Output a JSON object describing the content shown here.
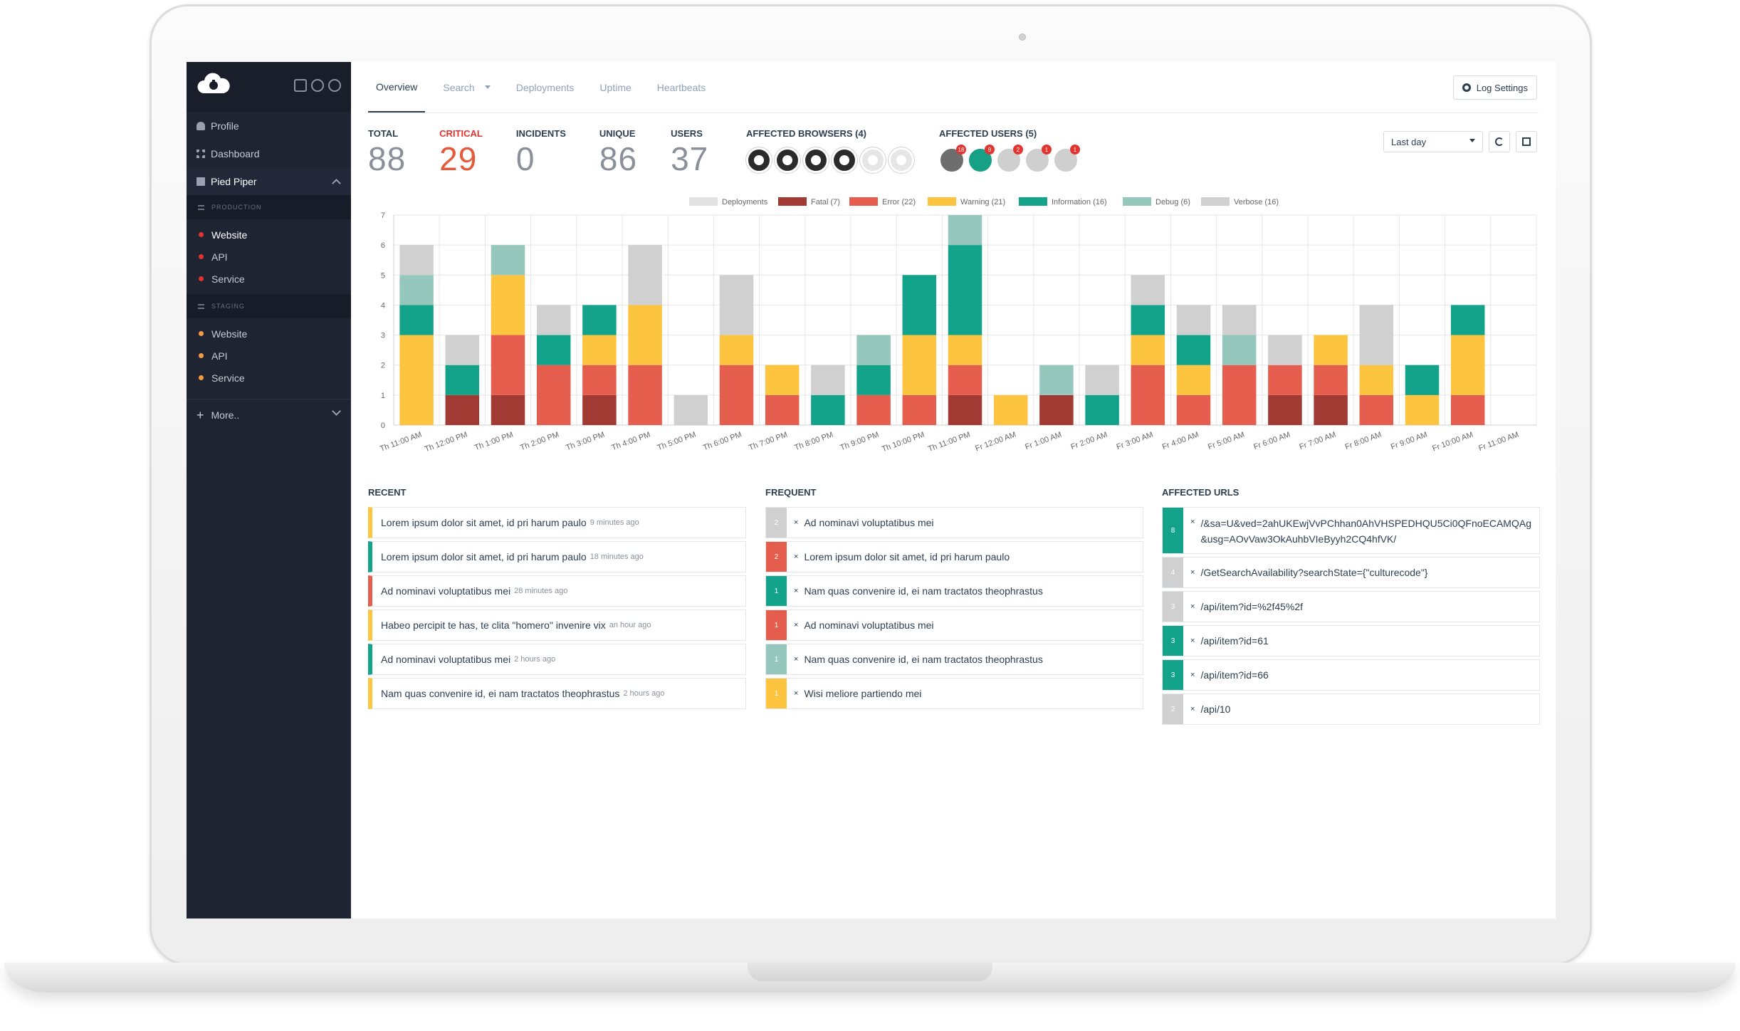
{
  "colors": {
    "fatal": "#a23a34",
    "error": "#e55d4c",
    "warning": "#fdc43f",
    "information": "#13a38b",
    "debug": "#95c7bd",
    "verbose": "#d0d0d0",
    "deployments": "#e2e2e2",
    "sidebar_bg": "#1f2433"
  },
  "sidebar": {
    "logo_icon": "cloud-bug-icon",
    "top_icons": [
      "gift-icon",
      "help-icon",
      "broadcast-icon"
    ],
    "profile": "Profile",
    "dashboard": "Dashboard",
    "project": "Pied Piper",
    "environments": [
      {
        "group": "PRODUCTION",
        "items": [
          {
            "label": "Website",
            "active": true
          },
          {
            "label": "API"
          },
          {
            "label": "Service"
          }
        ]
      },
      {
        "group": "STAGING",
        "items": [
          {
            "label": "Website"
          },
          {
            "label": "API"
          },
          {
            "label": "Service"
          }
        ]
      }
    ],
    "more": "More.."
  },
  "tabs": [
    "Overview",
    "Search",
    "Deployments",
    "Uptime",
    "Heartbeats"
  ],
  "log_settings": "Log Settings",
  "stats": [
    {
      "label": "TOTAL",
      "value": "88"
    },
    {
      "label": "CRITICAL",
      "value": "29"
    },
    {
      "label": "INCIDENTS",
      "value": "0"
    },
    {
      "label": "UNIQUE",
      "value": "86"
    },
    {
      "label": "USERS",
      "value": "37"
    }
  ],
  "affected_browsers": {
    "label": "AFFECTED BROWSERS (4)",
    "icons": [
      "chrome-icon",
      "firefox-icon",
      "edge-icon",
      "ie-icon",
      "opera-icon",
      "safari-icon"
    ]
  },
  "affected_users": {
    "label": "AFFECTED USERS (5)",
    "badges": [
      "18",
      "9",
      "2",
      "1",
      "1"
    ]
  },
  "range": "Last day",
  "chart_data": {
    "type": "bar",
    "stacked": true,
    "ylim": [
      0,
      7
    ],
    "yticks": [
      0,
      1,
      2,
      3,
      4,
      5,
      6,
      7
    ],
    "categories": [
      "Th 11:00 AM",
      "Th 12:00 PM",
      "Th 1:00 PM",
      "Th 2:00 PM",
      "Th 3:00 PM",
      "Th 4:00 PM",
      "Th 5:00 PM",
      "Th 6:00 PM",
      "Th 7:00 PM",
      "Th 8:00 PM",
      "Th 9:00 PM",
      "Th 10:00 PM",
      "Th 11:00 PM",
      "Fr 12:00 AM",
      "Fr 1:00 AM",
      "Fr 2:00 AM",
      "Fr 3:00 AM",
      "Fr 4:00 AM",
      "Fr 5:00 AM",
      "Fr 6:00 AM",
      "Fr 7:00 AM",
      "Fr 8:00 AM",
      "Fr 9:00 AM",
      "Fr 10:00 AM",
      "Fr 11:00 AM"
    ],
    "legend": [
      "Deployments",
      "Fatal (7)",
      "Error (22)",
      "Warning (21)",
      "Information (16)",
      "Debug (6)",
      "Verbose (16)"
    ],
    "series": [
      {
        "name": "Fatal",
        "values": [
          0,
          1,
          1,
          0,
          1,
          0,
          0,
          0,
          0,
          0,
          0,
          0,
          1,
          0,
          1,
          0,
          0,
          0,
          0,
          1,
          1,
          0,
          0,
          0,
          0
        ]
      },
      {
        "name": "Error",
        "values": [
          0,
          0,
          2,
          2,
          1,
          2,
          0,
          2,
          1,
          0,
          1,
          1,
          1,
          0,
          0,
          0,
          2,
          1,
          2,
          1,
          1,
          1,
          0,
          1,
          0
        ]
      },
      {
        "name": "Warning",
        "values": [
          3,
          0,
          2,
          0,
          1,
          2,
          0,
          1,
          1,
          0,
          0,
          2,
          1,
          1,
          0,
          0,
          1,
          1,
          0,
          0,
          1,
          1,
          1,
          2,
          0
        ]
      },
      {
        "name": "Information",
        "values": [
          1,
          1,
          0,
          1,
          1,
          0,
          0,
          0,
          0,
          1,
          1,
          2,
          3,
          0,
          0,
          1,
          1,
          1,
          0,
          0,
          0,
          0,
          1,
          1,
          0
        ]
      },
      {
        "name": "Debug",
        "values": [
          1,
          0,
          1,
          0,
          0,
          0,
          0,
          0,
          0,
          0,
          1,
          0,
          1,
          0,
          1,
          0,
          0,
          0,
          1,
          0,
          0,
          0,
          0,
          0,
          0
        ]
      },
      {
        "name": "Verbose",
        "values": [
          1,
          1,
          0,
          1,
          0,
          2,
          1,
          2,
          0,
          1,
          0,
          0,
          0,
          0,
          0,
          1,
          1,
          1,
          1,
          1,
          0,
          2,
          0,
          0,
          0
        ]
      }
    ]
  },
  "recent": {
    "title": "RECENT",
    "items": [
      {
        "text": "Lorem ipsum dolor sit amet, id pri harum paulo",
        "ago": "9 minutes ago",
        "color": "#fdc43f"
      },
      {
        "text": "Lorem ipsum dolor sit amet, id pri harum paulo",
        "ago": "18 minutes ago",
        "color": "#13a38b"
      },
      {
        "text": "Ad nominavi voluptatibus mei",
        "ago": "28 minutes ago",
        "color": "#e55d4c"
      },
      {
        "text": "Habeo percipit te has, te clita \"homero\" invenire vix",
        "ago": "an hour ago",
        "color": "#fdc43f"
      },
      {
        "text": "Ad nominavi voluptatibus mei",
        "ago": "2 hours ago",
        "color": "#13a38b"
      },
      {
        "text": "Nam quas convenire id, ei nam tractatos theophrastus",
        "ago": "2 hours ago",
        "color": "#fdc43f"
      }
    ]
  },
  "frequent": {
    "title": "FREQUENT",
    "items": [
      {
        "count": "2",
        "text": "Ad nominavi voluptatibus mei",
        "color": "#d0d0d0"
      },
      {
        "count": "2",
        "text": "Lorem ipsum dolor sit amet, id pri harum paulo",
        "color": "#e55d4c"
      },
      {
        "count": "1",
        "text": "Nam quas convenire id, ei nam tractatos theophrastus",
        "color": "#13a38b"
      },
      {
        "count": "1",
        "text": "Ad nominavi voluptatibus mei",
        "color": "#e55d4c"
      },
      {
        "count": "1",
        "text": "Nam quas convenire id, ei nam tractatos theophrastus",
        "color": "#95c7bd"
      },
      {
        "count": "1",
        "text": "Wisi meliore partiendo mei",
        "color": "#fdc43f"
      }
    ]
  },
  "affected_urls": {
    "title": "AFFECTED URLS",
    "items": [
      {
        "count": "8",
        "text": "/&sa=U&ved=2ahUKEwjVvPChhan0AhVHSPEDHQU5Ci0QFnoECAMQAg&usg=AOvVaw3OkAuhbVIeByyh2CQ4hfVK/",
        "color": "#13a38b"
      },
      {
        "count": "4",
        "text": "/GetSearchAvailability?searchState={\"culturecode\"}",
        "color": "#d0d0d0"
      },
      {
        "count": "3",
        "text": "/api/item?id=%2f45%2f",
        "color": "#d0d0d0"
      },
      {
        "count": "3",
        "text": "/api/item?id=61",
        "color": "#13a38b"
      },
      {
        "count": "3",
        "text": "/api/item?id=66",
        "color": "#13a38b"
      },
      {
        "count": "2",
        "text": "/api/10",
        "color": "#d0d0d0"
      }
    ]
  }
}
